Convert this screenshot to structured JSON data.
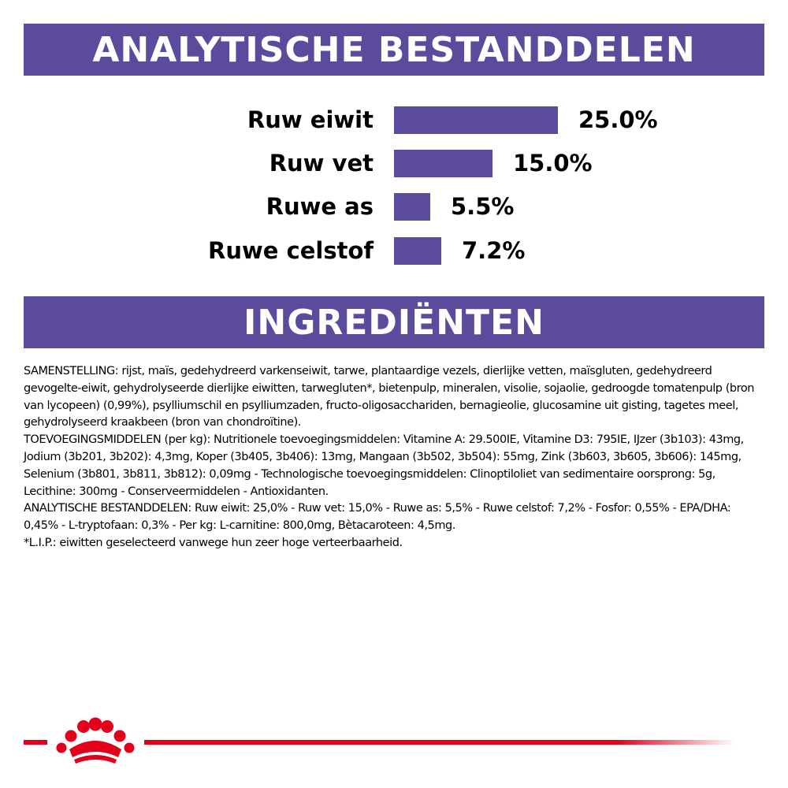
{
  "headings": {
    "analytical": "ANALYTISCHE BESTANDDELEN",
    "ingredients": "INGREDIËNTEN"
  },
  "colors": {
    "accent_purple": "#5c4a9c",
    "brand_red": "#e2001a"
  },
  "chart_data": {
    "type": "bar",
    "orientation": "horizontal",
    "categories": [
      "Ruw eiwit",
      "Ruw vet",
      "Ruwe as",
      "Ruwe celstof"
    ],
    "values": [
      25.0,
      15.0,
      5.5,
      7.2
    ],
    "value_labels": [
      "25.0%",
      "15.0%",
      "5.5%",
      "7.2%"
    ],
    "unit": "%",
    "xlim": [
      0,
      25
    ],
    "grid": false,
    "title": ""
  },
  "ingredients": {
    "samenstelling": "SAMENSTELLING: rijst, maïs, gedehydreerd varkenseiwit, tarwe, plantaardige vezels, dierlijke vetten, maïsgluten, gedehydreerd gevogelte-eiwit, gehydrolyseerde dierlijke eiwitten, tarwegluten*, bietenpulp, mineralen, visolie, sojaolie, gedroogde tomatenpulp (bron van lycopeen) (0,99%), psylliumschil en psylliumzaden, fructo-oligosacchariden, bernagieolie, glucosamine uit gisting, tagetes meel, gehydrolyseerd kraakbeen (bron van chondroïtine).",
    "toevoegingsmiddelen": "TOEVOEGINGSMIDDELEN (per kg): Nutritionele toevoegingsmiddelen: Vitamine A: 29.500IE, Vitamine D3: 795IE, IJzer (3b103): 43mg, Jodium (3b201, 3b202): 4,3mg, Koper (3b405, 3b406): 13mg, Mangaan (3b502, 3b504): 55mg, Zink (3b603, 3b605, 3b606): 145mg, Selenium (3b801, 3b811, 3b812): 0,09mg - Technologische toevoegingsmiddelen: Clinoptiloliet van sedimentaire oorsprong: 5g, Lecithine: 300mg - Conserveermiddelen - Antioxidanten.",
    "analytische": "ANALYTISCHE BESTANDDELEN: Ruw eiwit: 25,0% - Ruw vet: 15,0% - Ruwe as: 5,5% - Ruwe celstof: 7,2% - Fosfor: 0,55% - EPA/DHA: 0,45% - L-tryptofaan: 0,3% - Per kg: L-carnitine: 800,0mg, Bètacaroteen: 4,5mg.",
    "footnote": "*L.I.P.: eiwitten geselecteerd vanwege hun zeer hoge verteerbaarheid."
  },
  "footer": {
    "logo_icon": "royal-canin-crown-icon"
  }
}
